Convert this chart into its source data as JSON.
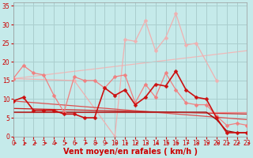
{
  "title": "",
  "xlabel": "Vent moyen/en rafales ( km/h )",
  "xlim": [
    0,
    23
  ],
  "ylim": [
    0,
    36
  ],
  "yticks": [
    0,
    5,
    10,
    15,
    20,
    25,
    30,
    35
  ],
  "xticks": [
    0,
    1,
    2,
    3,
    4,
    5,
    6,
    7,
    8,
    9,
    10,
    11,
    12,
    13,
    14,
    15,
    16,
    17,
    18,
    19,
    20,
    21,
    22,
    23
  ],
  "bg_color": "#c5eaea",
  "grid_color": "#aacece",
  "lines": [
    {
      "x": [
        0,
        1,
        2,
        3,
        4,
        5,
        6,
        7,
        8,
        9,
        10,
        11,
        12,
        13,
        14,
        15,
        16,
        17,
        18,
        19,
        20,
        21,
        22,
        23
      ],
      "y": [
        15.5,
        19,
        17,
        16.5,
        11,
        6.5,
        16,
        15,
        15,
        13,
        16,
        16.5,
        9,
        14,
        10.5,
        17,
        12.5,
        9,
        8.5,
        8.5,
        5.5,
        3,
        3.5,
        3
      ],
      "color": "#f08080",
      "lw": 0.9,
      "marker": "D",
      "ms": 2.5,
      "zorder": 3
    },
    {
      "x": [
        0,
        6,
        10,
        11,
        12,
        13,
        14,
        15,
        16,
        17,
        18,
        20
      ],
      "y": [
        15.5,
        15,
        0,
        26,
        25.5,
        31,
        23,
        26.5,
        33,
        24.5,
        25,
        15
      ],
      "color": "#f0b0b0",
      "lw": 0.9,
      "marker": "D",
      "ms": 2.5,
      "zorder": 2
    },
    {
      "x": [
        0,
        23
      ],
      "y": [
        15.5,
        23
      ],
      "color": "#f0b8b8",
      "lw": 0.9,
      "marker": null,
      "ms": 0,
      "zorder": 1
    },
    {
      "x": [
        0,
        1,
        2,
        3,
        4,
        5,
        6,
        7,
        8,
        9,
        10,
        11,
        12,
        13,
        14,
        15,
        16,
        17,
        18,
        19,
        20,
        21,
        22,
        23
      ],
      "y": [
        9.5,
        10.5,
        7,
        7,
        7,
        6,
        6,
        5,
        5,
        13,
        11,
        12.5,
        8.5,
        10.5,
        14,
        13.5,
        17.5,
        12.5,
        10.5,
        10,
        5,
        1,
        1,
        1
      ],
      "color": "#cc1010",
      "lw": 1.2,
      "marker": "D",
      "ms": 2.5,
      "zorder": 5
    },
    {
      "x": [
        0,
        23
      ],
      "y": [
        9.5,
        4.5
      ],
      "color": "#dd5050",
      "lw": 0.9,
      "marker": null,
      "ms": 0,
      "zorder": 2
    },
    {
      "x": [
        0,
        23
      ],
      "y": [
        7.5,
        6.0
      ],
      "color": "#cc2020",
      "lw": 0.9,
      "marker": null,
      "ms": 0,
      "zorder": 2
    },
    {
      "x": [
        0,
        23
      ],
      "y": [
        6.5,
        6.5
      ],
      "color": "#ee8888",
      "lw": 0.9,
      "marker": null,
      "ms": 0,
      "zorder": 2
    },
    {
      "x": [
        0,
        19,
        20,
        21,
        22,
        23
      ],
      "y": [
        6.5,
        6.5,
        4.5,
        1.5,
        1.0,
        1.0
      ],
      "color": "#990000",
      "lw": 0.9,
      "marker": null,
      "ms": 0,
      "zorder": 2
    }
  ],
  "tick_label_color": "#cc0000",
  "axis_label_color": "#cc0000",
  "tick_fontsize": 5.5,
  "xlabel_fontsize": 7,
  "arrow_color": "#cc2020"
}
